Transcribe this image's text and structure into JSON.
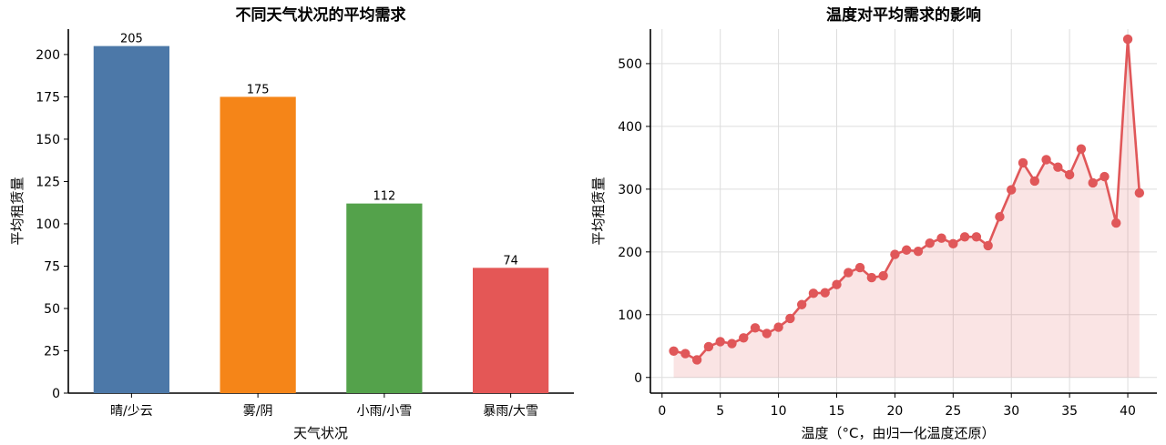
{
  "chart_data": [
    {
      "type": "bar",
      "title": "不同天气状况的平均需求",
      "xlabel": "天气状况",
      "ylabel": "平均租赁量",
      "categories": [
        "晴/少云",
        "雾/阴",
        "小雨/小雪",
        "暴雨/大雪"
      ],
      "values": [
        205,
        175,
        112,
        74
      ],
      "data_labels": [
        "205",
        "175",
        "112",
        "74"
      ],
      "colors": [
        "#4c78a8",
        "#f58518",
        "#54a24b",
        "#e45756"
      ],
      "ylim": [
        0,
        215
      ],
      "yticks": [
        0,
        25,
        50,
        75,
        100,
        125,
        150,
        175,
        200
      ],
      "grid": false,
      "legend": "none"
    },
    {
      "type": "line",
      "title": "温度对平均需求的影响",
      "xlabel": "温度（°C，由归一化温度还原）",
      "ylabel": "平均租赁量",
      "x": [
        1,
        2,
        3,
        4,
        5,
        6,
        7,
        8,
        9,
        10,
        11,
        12,
        13,
        14,
        15,
        16,
        17,
        18,
        19,
        20,
        21,
        22,
        23,
        24,
        25,
        26,
        27,
        28,
        29,
        30,
        31,
        32,
        33,
        34,
        35,
        36,
        37,
        38,
        39,
        40,
        41
      ],
      "values": [
        42,
        38,
        28,
        49,
        57,
        54,
        63,
        79,
        70,
        80,
        94,
        116,
        134,
        135,
        148,
        167,
        175,
        159,
        162,
        196,
        203,
        201,
        214,
        222,
        213,
        224,
        224,
        210,
        256,
        299,
        342,
        313,
        347,
        335,
        323,
        364,
        310,
        320,
        246,
        539,
        294
      ],
      "color": "#e05759",
      "fill_color": "#e05759",
      "xlim": [
        -1,
        42.5
      ],
      "ylim": [
        -25,
        555
      ],
      "xticks": [
        0,
        5,
        10,
        15,
        20,
        25,
        30,
        35,
        40
      ],
      "yticks": [
        0,
        100,
        200,
        300,
        400,
        500
      ],
      "grid": true,
      "legend": "none",
      "marker": "circle",
      "area_fill": true
    }
  ]
}
